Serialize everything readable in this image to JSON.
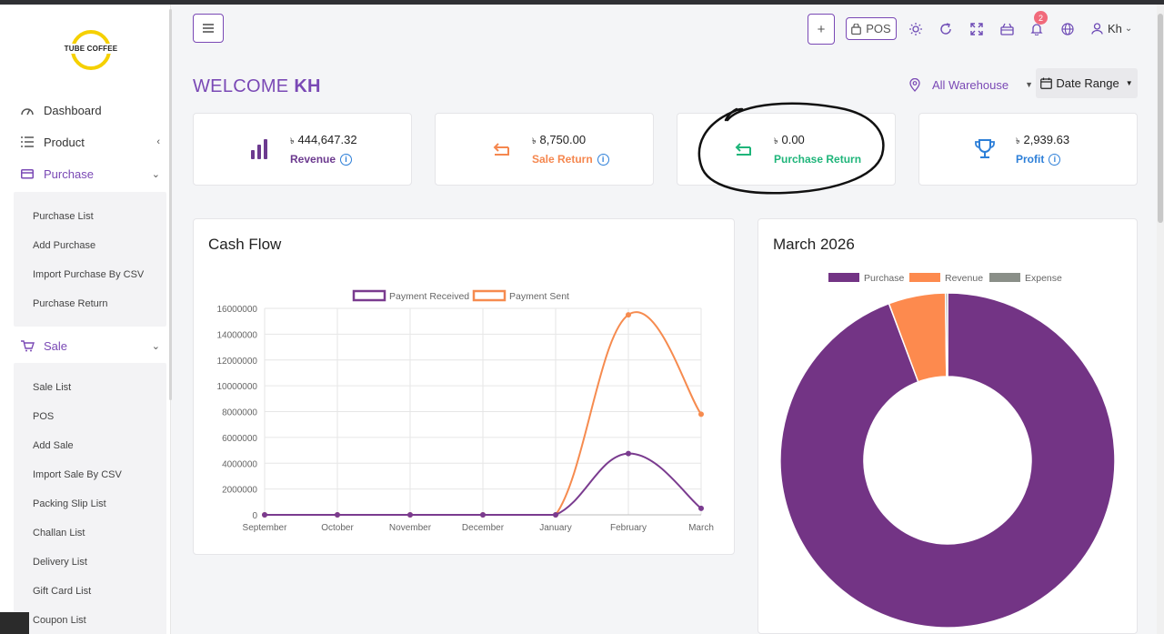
{
  "brand": {
    "logo_text": "TUBE COFFEE"
  },
  "sidebar": {
    "items": [
      {
        "label": "Dashboard",
        "icon": "gauge-icon"
      },
      {
        "label": "Product",
        "icon": "list-icon"
      },
      {
        "label": "Purchase",
        "icon": "card-icon"
      },
      {
        "label": "Sale",
        "icon": "cart-icon"
      }
    ],
    "purchase_sub": [
      "Purchase List",
      "Add Purchase",
      "Import Purchase By CSV",
      "Purchase Return"
    ],
    "sale_sub": [
      "Sale List",
      "POS",
      "Add Sale",
      "Import Sale By CSV",
      "Packing Slip List",
      "Challan List",
      "Delivery List",
      "Gift Card List",
      "Coupon List"
    ]
  },
  "header": {
    "add_label": "+",
    "pos_label": "POS",
    "notification_count": "2",
    "user_label": "Kh",
    "icons": [
      "sun-icon",
      "refresh-icon",
      "fullscreen-icon",
      "basket-icon",
      "bell-icon",
      "globe-icon",
      "user-icon"
    ]
  },
  "welcome": {
    "prefix": "WELCOME",
    "name": "KH"
  },
  "filters": {
    "warehouse": "All Warehouse",
    "date_range": "Date Range"
  },
  "currency_symbol": "৳",
  "cards": [
    {
      "amount": "444,647.32",
      "label": "Revenue",
      "color": "#6c3a8f",
      "icon": "bar-chart-icon"
    },
    {
      "amount": "8,750.00",
      "label": "Sale Return",
      "color": "#f5874f",
      "icon": "return-icon"
    },
    {
      "amount": "0.00",
      "label": "Purchase Return",
      "color": "#1fb57a",
      "icon": "return-icon"
    },
    {
      "amount": "2,939.63",
      "label": "Profit",
      "color": "#2d7fd8",
      "icon": "trophy-icon"
    }
  ],
  "cashflow": {
    "title": "Cash Flow",
    "chart_data": {
      "type": "line",
      "categories": [
        "September",
        "October",
        "November",
        "December",
        "January",
        "February",
        "March"
      ],
      "series": [
        {
          "name": "Payment Received",
          "color": "#7a3b8f",
          "values": [
            0,
            0,
            0,
            0,
            0,
            4750000,
            500000
          ]
        },
        {
          "name": "Payment Sent",
          "color": "#f68b4f",
          "values": [
            0,
            0,
            0,
            0,
            0,
            15500000,
            7800000
          ]
        }
      ],
      "ylim": [
        0,
        16000000
      ],
      "yticks": [
        "0",
        "2000000",
        "4000000",
        "6000000",
        "8000000",
        "10000000",
        "12000000",
        "14000000",
        "16000000"
      ],
      "grid": true,
      "legend": "top"
    }
  },
  "donut": {
    "title": "March 2026",
    "chart_data": {
      "type": "pie",
      "categories": [
        "Purchase",
        "Revenue",
        "Expense"
      ],
      "values": [
        94.3,
        5.5,
        0.2
      ],
      "colors": [
        "#733485",
        "#fd8a4e",
        "#8a8f88"
      ],
      "legend": "top"
    }
  }
}
